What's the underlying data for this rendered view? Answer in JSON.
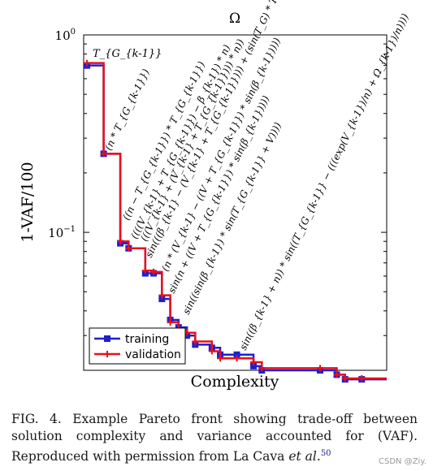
{
  "chart_data": {
    "type": "line",
    "title": "Ω",
    "xlabel": "Complexity",
    "ylabel": "1-VAF/100",
    "yscale": "log",
    "ylim": [
      0.02,
      1
    ],
    "y_ticks": [
      {
        "value": 1,
        "label": "10",
        "exp": "0"
      },
      {
        "value": 0.1,
        "label": "10",
        "exp": "−1"
      }
    ],
    "legend": {
      "placement": "bottom-left",
      "entries": [
        "training",
        "validation"
      ]
    },
    "colors": {
      "training": "#1f1fd0",
      "validation": "#e8101a",
      "axis": "#000000"
    },
    "series": [
      {
        "name": "training",
        "x": [
          1,
          3,
          5,
          6,
          8,
          9,
          10,
          11,
          12,
          13,
          14,
          16,
          17,
          19,
          21,
          22,
          29,
          31,
          32,
          34
        ],
        "y": [
          0.7,
          0.25,
          0.088,
          0.083,
          0.062,
          0.062,
          0.046,
          0.036,
          0.033,
          0.03,
          0.027,
          0.026,
          0.024,
          0.024,
          0.021,
          0.02,
          0.02,
          0.019,
          0.018,
          0.018
        ]
      },
      {
        "name": "validation",
        "x": [
          1,
          3,
          5,
          6,
          8,
          9,
          10,
          11,
          12,
          13,
          14,
          16,
          17,
          19,
          21,
          22,
          29,
          31,
          32,
          34
        ],
        "y": [
          0.72,
          0.25,
          0.09,
          0.083,
          0.064,
          0.063,
          0.048,
          0.035,
          0.032,
          0.031,
          0.028,
          0.025,
          0.023,
          0.023,
          0.022,
          0.0205,
          0.0205,
          0.019,
          0.0182,
          0.0182
        ]
      }
    ],
    "annotations": [
      "T_{G_{k-1}}",
      "(n * T_{G_{k-1}})",
      "((n − T_{G_{k-1}}) * T_{G_{k-1}})",
      "((((V_{k-1} + T_{G_{k-1}}) − β_{k-1}) * n)",
      "(((V_{k-1} + (V_{k-1} + T_{G_{k-1}}))) * n))",
      "sin(((β_{k-1} − (V_{k-1} + T_{G_{k-1}}))) + (sin(T_G) * T_{G_{k-1}}))",
      "(n * (V_{k-1} − ((V + T_{G_{k-1}}) * sin(β_{k-1}))))",
      "sin(n + ((V + T_{G_{k-1}}) * sin(β_{k-1}))))",
      "sin((sin(β_{k-1}) * sin(T_{G_{k-1}} + V))))",
      "sin((β_{k-1} + n)) * sin((T_{G_{k-1}} − (((exp(V_{k-1})/n) + Ω_{k-1})/n))))"
    ]
  },
  "caption": {
    "text": "FIG. 4. Example Pareto front showing trade-off between solution complexity and variance accounted for (VAF). Reproduced with permission from La Cava ",
    "ref_text": "et al.",
    "ref_num": "50"
  },
  "watermark": "CSDN @Ziy."
}
